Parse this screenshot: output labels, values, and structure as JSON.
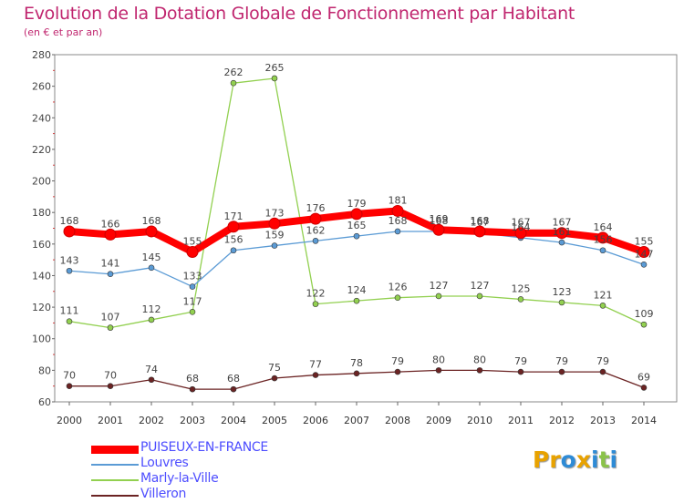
{
  "header": {
    "title": "Evolution de la Dotation Globale de Fonctionnement par Habitant",
    "subtitle": "(en € et par an)"
  },
  "brand": {
    "letters": [
      "P",
      "r",
      "o",
      "x",
      "i",
      "t",
      "i"
    ],
    "colors": [
      "#e8a200",
      "#e8a200",
      "#2e8bd6",
      "#e8a200",
      "#2e8bd6",
      "#8bc34a",
      "#2e8bd6"
    ]
  },
  "chart_data": {
    "type": "line",
    "title": "Evolution de la Dotation Globale de Fonctionnement par Habitant",
    "subtitle": "(en € et par an)",
    "xlabel": "",
    "ylabel": "",
    "ylim": [
      60,
      280
    ],
    "yticks": [
      60,
      80,
      100,
      120,
      140,
      160,
      180,
      200,
      220,
      240,
      260,
      280
    ],
    "grid": false,
    "legend_position": "bottom-left",
    "categories": [
      "2000",
      "2001",
      "2002",
      "2003",
      "2004",
      "2005",
      "2006",
      "2007",
      "2008",
      "2009",
      "2010",
      "2011",
      "2012",
      "2013",
      "2014"
    ],
    "series": [
      {
        "name": "PUISEUX-EN-FRANCE",
        "color": "#ff0000",
        "values": [
          168,
          166,
          168,
          155,
          171,
          173,
          176,
          179,
          181,
          169,
          168,
          167,
          167,
          164,
          155
        ],
        "emphasis": true
      },
      {
        "name": "Louvres",
        "color": "#5b9bd5",
        "values": [
          143,
          141,
          145,
          133,
          156,
          159,
          162,
          165,
          168,
          168,
          167,
          164,
          161,
          156,
          147
        ]
      },
      {
        "name": "Marly-la-Ville",
        "color": "#92d050",
        "values": [
          111,
          107,
          112,
          117,
          262,
          265,
          122,
          124,
          126,
          127,
          127,
          125,
          123,
          121,
          109
        ]
      },
      {
        "name": "Villeron",
        "color": "#6b2323",
        "values": [
          70,
          70,
          74,
          68,
          68,
          75,
          77,
          78,
          79,
          80,
          80,
          79,
          79,
          79,
          69
        ]
      }
    ]
  }
}
